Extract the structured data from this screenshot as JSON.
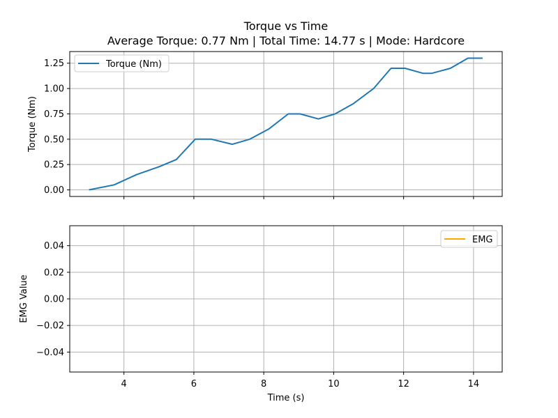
{
  "chart_data": {
    "type": "line",
    "title": "Torque vs Time",
    "subtitle": "Average Torque: 0.77 Nm | Total Time: 14.77 s | Mode: Hardcore",
    "xlabel": "Time (s)",
    "xlim": [
      2.45,
      14.82
    ],
    "x_ticks": [
      4,
      6,
      8,
      10,
      12,
      14
    ],
    "x_tick_labels": [
      "4",
      "6",
      "8",
      "10",
      "12",
      "14"
    ],
    "grid": true,
    "panels": [
      {
        "ylabel": "Torque (Nm)",
        "ylim": [
          -0.065,
          1.365
        ],
        "y_ticks": [
          0,
          0.25,
          0.5,
          0.75,
          1.0,
          1.25
        ],
        "y_tick_labels": [
          "0.00",
          "0.25",
          "0.50",
          "0.75",
          "1.00",
          "1.25"
        ],
        "legend_position": "upper-left",
        "series": [
          {
            "name": "Torque (Nm)",
            "color": "#1f77b4",
            "x": [
              3.0,
              3.72,
              4.36,
              5.02,
              5.5,
              6.04,
              6.5,
              7.1,
              7.6,
              8.14,
              8.7,
              9.04,
              9.56,
              10.04,
              10.56,
              11.14,
              11.64,
              12.04,
              12.56,
              12.8,
              13.34,
              13.84,
              14.26
            ],
            "values": [
              0.0,
              0.05,
              0.15,
              0.23,
              0.3,
              0.5,
              0.5,
              0.45,
              0.5,
              0.6,
              0.75,
              0.75,
              0.7,
              0.75,
              0.85,
              1.0,
              1.2,
              1.2,
              1.15,
              1.15,
              1.2,
              1.3,
              1.3
            ]
          }
        ]
      },
      {
        "ylabel": "EMG Value",
        "ylim": [
          -0.055,
          0.055
        ],
        "y_ticks": [
          -0.04,
          -0.02,
          0.0,
          0.02,
          0.04
        ],
        "y_tick_labels": [
          "−0.04",
          "−0.02",
          "0.00",
          "0.02",
          "0.04"
        ],
        "legend_position": "upper-right",
        "series": [
          {
            "name": "EMG",
            "color": "#ffa500",
            "x": [],
            "values": []
          }
        ]
      }
    ]
  }
}
